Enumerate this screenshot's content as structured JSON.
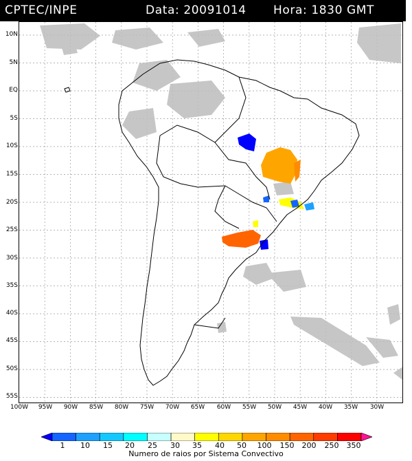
{
  "header": {
    "source": "CPTEC/INPE",
    "date_label": "Data: 20091014",
    "time_label": "Hora: 1830 GMT"
  },
  "map": {
    "lat_labels": [
      "10N",
      "5N",
      "EQ",
      "5S",
      "10S",
      "15S",
      "20S",
      "25S",
      "30S",
      "35S",
      "40S",
      "45S",
      "50S",
      "55S"
    ],
    "lon_labels": [
      "100W",
      "95W",
      "90W",
      "85W",
      "80W",
      "75W",
      "70W",
      "65W",
      "60W",
      "55W",
      "50W",
      "45W",
      "40W",
      "35W",
      "30W"
    ],
    "colors": {
      "land_outline": "#000000",
      "cloud_gray": "#bdbdbd",
      "grid": "#9a9a9a"
    }
  },
  "colorbar": {
    "title": "Numero de raios por Sistema Convectivo",
    "labels": [
      "1",
      "10",
      "15",
      "20",
      "25",
      "30",
      "35",
      "40",
      "50",
      "100",
      "150",
      "200",
      "250",
      "350"
    ],
    "colors": [
      "#0000ff",
      "#1464ff",
      "#1ea0ff",
      "#14c8ff",
      "#00ffff",
      "#c8ffff",
      "#fffac8",
      "#ffff00",
      "#ffd700",
      "#ffa500",
      "#ff8c00",
      "#ff6400",
      "#ff3c00",
      "#ff0000",
      "#ff1493"
    ]
  }
}
